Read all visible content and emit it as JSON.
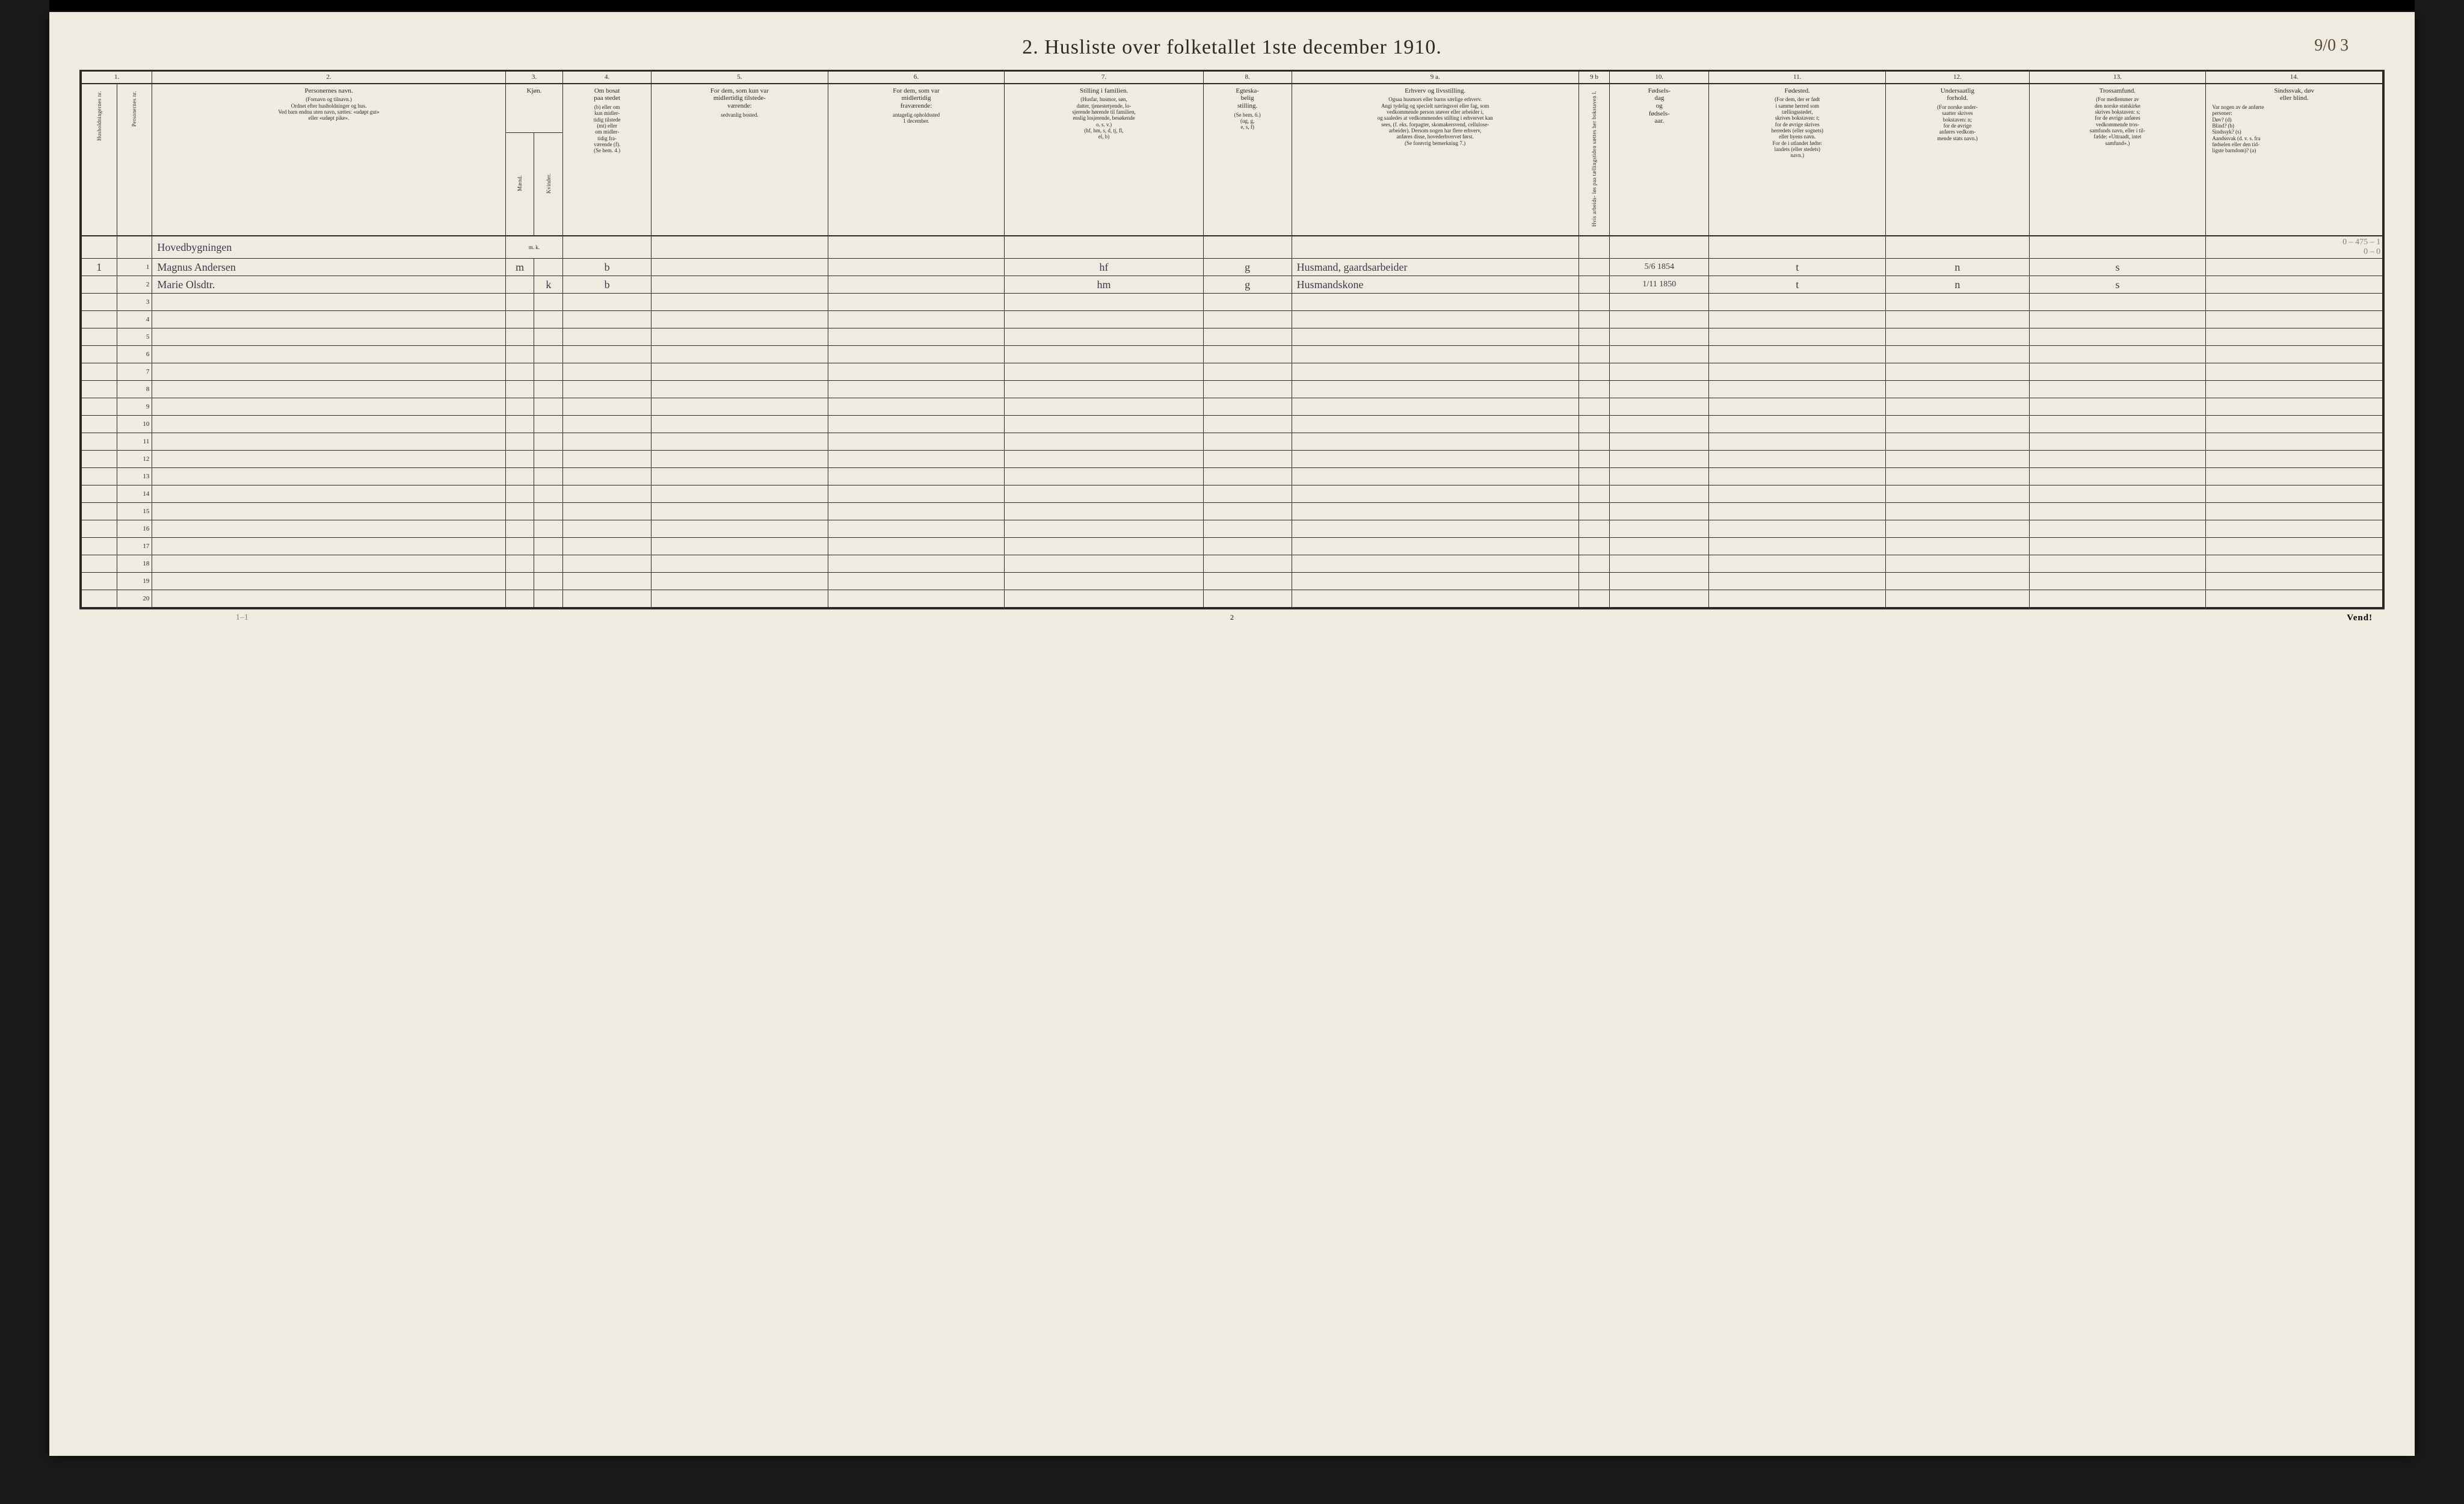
{
  "document": {
    "title": "2.  Husliste over folketallet 1ste december 1910.",
    "page_mark_right": "9/0 3",
    "page_number_bottom": "2",
    "footer_left": "1–1",
    "footer_right": "Vend!"
  },
  "colors": {
    "paper": "#f0ebe0",
    "ink": "#2a2a2a",
    "handwriting": "#3a3a4a",
    "pencil": "#8a8578"
  },
  "column_numbers": [
    "1.",
    "2.",
    "3.",
    "4.",
    "5.",
    "6.",
    "7.",
    "8.",
    "9 a.",
    "9 b",
    "10.",
    "11.",
    "12.",
    "13.",
    "14."
  ],
  "headers": {
    "c1a": "Husholdningernes nr.",
    "c1b": "Personernes nr.",
    "c2": {
      "title": "Personernes navn.",
      "body": "(Fornavn og tilnavn.)\nOrdnet efter husholdninger og hus.\nVed barn endnu uten navn, sættes: «udøpt gut»\neller «udøpt pike»."
    },
    "c3": {
      "title": "Kjøn.",
      "sub_a": "Mænd.",
      "sub_b": "Kvinder.",
      "foot": "m.  k."
    },
    "c4": {
      "title": "Om bosat\npaa stedet",
      "body": "(b) eller om\nkun midler-\ntidig tilstede\n(mt) eller\nom midler-\ntidig fra-\nværende (f).\n(Se bem. 4.)"
    },
    "c5": {
      "title": "For dem, som kun var\nmidlertidig tilstede-\nværende:",
      "body": "sedvanlig bosted."
    },
    "c6": {
      "title": "For dem, som var\nmidlertidig\nfraværende:",
      "body": "antagelig opholdssted\n1 december."
    },
    "c7": {
      "title": "Stilling i familien.",
      "body": "(Husfar, husmor, søn,\ndatter, tjenestetyende, lo-\nsjerende hørende til familien,\nenslig losjerende, besøkende\no. s. v.)\n(hf, hm, s, d, tj, fl,\nel, b)"
    },
    "c8": {
      "title": "Egteska-\nbelig\nstilling.",
      "body": "(Se bem. 6.)\n(ug, g,\ne, s, f)"
    },
    "c9a": {
      "title": "Erhverv og livsstilling.",
      "body": "Ogsaa husmors eller barns særlige erhverv.\nAngi tydelig og specielt næringsvei eller fag, som\nvedkommende person utøver eller arbeider i,\nog saaledes at vedkommendes stilling i erhvervet kan\nsees, (f. eks. forpagter, skomakersvend, cellulose-\narbeider). Dersom nogen har flere erhverv,\nanføres disse, hovederhvervet først.\n(Se forøvrig bemerkning 7.)"
    },
    "c9b": "Hvis arbeids-\nløs paa tællingstiden sættes\nher bokstaven l.",
    "c10": {
      "title": "Fødsels-\ndag\nog\nfødsels-\naar."
    },
    "c11": {
      "title": "Fødested.",
      "body": "(For dem, der er født\ni samme herred som\ntællingsstedet,\nskrives bokstaven: t;\nfor de øvrige skrives\nherredets (eller sognets)\neller byens navn.\nFor de i utlandet fødte:\nlandets (eller stedets)\nnavn.)"
    },
    "c12": {
      "title": "Undersaatlig\nforhold.",
      "body": "(For norske under-\nsaatter skrives\nbokstaven: n;\nfor de øvrige\nanføres vedkom-\nmende stats navn.)"
    },
    "c13": {
      "title": "Trossamfund.",
      "body": "(For medlemmer av\nden norske statskirke\nskrives bokstaven: s;\nfor de øvrige anføres\nvedkommende tros-\nsamfunds navn, eller i til-\nfælde: «Uttraadt, intet\nsamfund».)"
    },
    "c14": {
      "title": "Sindssvak, døv\neller blind.",
      "body": "Var nogen av de anførte\npersoner:\nDøv?        (d)\nBlind?       (b)\nSindssyk?  (s)\nAandssvak (d. v. s. fra\nfødselen eller den tid-\nligste barndom)?  (a)"
    }
  },
  "pencil_notes": {
    "top_right": "0 – 475 – 1",
    "top_right_2": "0 – 0"
  },
  "rows": {
    "building_line": "Hovedbygningen",
    "r1": {
      "hh": "1",
      "pn": "1",
      "name": "Magnus Andersen",
      "sex_m": "m",
      "c4": "b",
      "c7": "hf",
      "c8": "g",
      "c9a": "Husmand, gaardsarbeider",
      "c10": "5/6 1854",
      "c11": "t",
      "c12": "n",
      "c13": "s"
    },
    "r2": {
      "pn": "2",
      "name": "Marie Olsdtr.",
      "sex_k": "k",
      "c4": "b",
      "c7": "hm",
      "c8": "g",
      "c9a": "Husmandskone",
      "c10": "1/11 1850",
      "c11": "t",
      "c12": "n",
      "c13": "s"
    },
    "blank_rows": [
      "3",
      "4",
      "5",
      "6",
      "7",
      "8",
      "9",
      "10",
      "11",
      "12",
      "13",
      "14",
      "15",
      "16",
      "17",
      "18",
      "19",
      "20"
    ]
  }
}
